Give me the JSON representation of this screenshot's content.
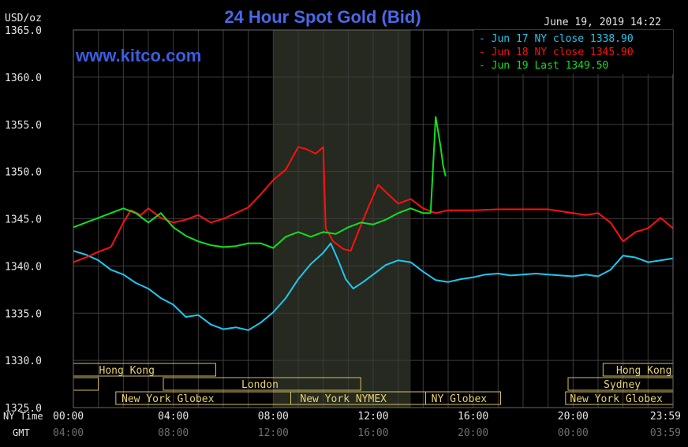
{
  "chart_data": {
    "type": "line",
    "title": "24 Hour Spot Gold (Bid)",
    "brand": "www.kitco.com",
    "unit_label": "USD/oz",
    "timestamp": "June 19, 2019 14:22",
    "ylim": [
      1325,
      1365
    ],
    "xlim": [
      0,
      24
    ],
    "y_ticks": [
      "1365.0",
      "1360.0",
      "1355.0",
      "1350.0",
      "1345.0",
      "1340.0",
      "1335.0",
      "1330.0",
      "1325.0"
    ],
    "x_ticks_ny": [
      "00:00",
      "04:00",
      "08:00",
      "12:00",
      "16:00",
      "20:00",
      "23:59"
    ],
    "x_ticks_gmt": [
      "04:00",
      "08:00",
      "12:00",
      "16:00",
      "20:00",
      "00:00",
      "03:59"
    ],
    "x_row_label_ny": "NY Time",
    "x_row_label_gmt": "GMT",
    "grid": true,
    "legend_position": "top-right",
    "shaded_region": [
      8,
      13.5
    ],
    "market_sessions": [
      {
        "label": "Hong Kong",
        "start": 0,
        "end": 5.7,
        "row": 0,
        "label_at": 0.9
      },
      {
        "label": "Hong Kong",
        "start": 21.2,
        "end": 24,
        "row": 0,
        "label_at": 21.6
      },
      {
        "label": "",
        "start": 0,
        "end": 1,
        "row": 1
      },
      {
        "label": "London",
        "start": 3.6,
        "end": 11.5,
        "row": 1,
        "label_at": 6.6
      },
      {
        "label": "Sydney",
        "start": 19.8,
        "end": 24,
        "row": 1,
        "label_at": 21.1
      },
      {
        "label": "New York Globex",
        "start": 1.7,
        "end": 8.7,
        "row": 2,
        "label_at": 1.8
      },
      {
        "label": "New York NYMEX",
        "start": 8.7,
        "end": 14.1,
        "row": 2,
        "label_at": 8.95
      },
      {
        "label": "NY Globex",
        "start": 14.1,
        "end": 17.1,
        "row": 2,
        "label_at": 14.2
      },
      {
        "label": "New York Globex",
        "start": 19.7,
        "end": 24,
        "row": 2,
        "label_at": 19.75
      }
    ],
    "series": [
      {
        "name": "Jun 17 NY close 1338.90",
        "color": "#1ec8f0",
        "points": [
          [
            0,
            1341.6
          ],
          [
            0.5,
            1341.2
          ],
          [
            1,
            1340.6
          ],
          [
            1.5,
            1339.6
          ],
          [
            2,
            1339.1
          ],
          [
            2.5,
            1338.2
          ],
          [
            3,
            1337.6
          ],
          [
            3.5,
            1336.6
          ],
          [
            4,
            1335.9
          ],
          [
            4.5,
            1334.6
          ],
          [
            5,
            1334.8
          ],
          [
            5.5,
            1333.8
          ],
          [
            6,
            1333.3
          ],
          [
            6.5,
            1333.5
          ],
          [
            7,
            1333.2
          ],
          [
            7.5,
            1334.0
          ],
          [
            8,
            1335.1
          ],
          [
            8.5,
            1336.6
          ],
          [
            9,
            1338.6
          ],
          [
            9.5,
            1340.2
          ],
          [
            10,
            1341.4
          ],
          [
            10.3,
            1342.4
          ],
          [
            10.6,
            1340.6
          ],
          [
            10.9,
            1338.6
          ],
          [
            11.2,
            1337.6
          ],
          [
            11.6,
            1338.3
          ],
          [
            12,
            1339.1
          ],
          [
            12.5,
            1340.1
          ],
          [
            13,
            1340.6
          ],
          [
            13.5,
            1340.4
          ],
          [
            14,
            1339.4
          ],
          [
            14.5,
            1338.5
          ],
          [
            15,
            1338.3
          ],
          [
            15.5,
            1338.6
          ],
          [
            16,
            1338.8
          ],
          [
            16.5,
            1339.1
          ],
          [
            17,
            1339.2
          ],
          [
            17.5,
            1339.0
          ],
          [
            18,
            1339.1
          ],
          [
            18.5,
            1339.2
          ],
          [
            19,
            1339.1
          ],
          [
            19.5,
            1339.0
          ],
          [
            20,
            1338.9
          ],
          [
            20.5,
            1339.1
          ],
          [
            21,
            1338.9
          ],
          [
            21.5,
            1339.6
          ],
          [
            22,
            1341.1
          ],
          [
            22.5,
            1340.9
          ],
          [
            23,
            1340.4
          ],
          [
            23.5,
            1340.6
          ],
          [
            24,
            1340.8
          ]
        ]
      },
      {
        "name": "Jun 18 NY close 1345.90",
        "color": "#ff1010",
        "points": [
          [
            0,
            1340.4
          ],
          [
            0.5,
            1340.9
          ],
          [
            1,
            1341.5
          ],
          [
            1.5,
            1342.0
          ],
          [
            2,
            1344.6
          ],
          [
            2.3,
            1345.9
          ],
          [
            2.7,
            1345.4
          ],
          [
            3,
            1346.1
          ],
          [
            3.5,
            1345.1
          ],
          [
            4,
            1344.6
          ],
          [
            4.5,
            1344.9
          ],
          [
            5,
            1345.4
          ],
          [
            5.5,
            1344.6
          ],
          [
            6,
            1345.0
          ],
          [
            6.5,
            1345.6
          ],
          [
            7,
            1346.2
          ],
          [
            7.5,
            1347.6
          ],
          [
            8,
            1349.1
          ],
          [
            8.5,
            1350.2
          ],
          [
            9,
            1352.6
          ],
          [
            9.3,
            1352.4
          ],
          [
            9.7,
            1351.9
          ],
          [
            10,
            1352.6
          ],
          [
            10.1,
            1344.0
          ],
          [
            10.4,
            1342.6
          ],
          [
            10.8,
            1341.8
          ],
          [
            11.1,
            1341.6
          ],
          [
            11.4,
            1343.6
          ],
          [
            11.8,
            1346.2
          ],
          [
            12.2,
            1348.6
          ],
          [
            12.6,
            1347.6
          ],
          [
            13,
            1346.6
          ],
          [
            13.5,
            1347.1
          ],
          [
            14,
            1346.1
          ],
          [
            14.5,
            1345.6
          ],
          [
            15,
            1345.9
          ],
          [
            16,
            1345.9
          ],
          [
            17,
            1346.0
          ],
          [
            18,
            1346.0
          ],
          [
            19,
            1346.0
          ],
          [
            20,
            1345.6
          ],
          [
            20.5,
            1345.4
          ],
          [
            21,
            1345.6
          ],
          [
            21.5,
            1344.6
          ],
          [
            22,
            1342.6
          ],
          [
            22.5,
            1343.6
          ],
          [
            23,
            1344.0
          ],
          [
            23.5,
            1345.1
          ],
          [
            24,
            1344.0
          ]
        ]
      },
      {
        "name": "Jun 19 Last 1349.50",
        "color": "#10e020",
        "points": [
          [
            0,
            1344.1
          ],
          [
            0.5,
            1344.6
          ],
          [
            1,
            1345.1
          ],
          [
            1.5,
            1345.6
          ],
          [
            2,
            1346.1
          ],
          [
            2.5,
            1345.6
          ],
          [
            3,
            1344.6
          ],
          [
            3.5,
            1345.6
          ],
          [
            4,
            1344.1
          ],
          [
            4.5,
            1343.2
          ],
          [
            5,
            1342.6
          ],
          [
            5.5,
            1342.2
          ],
          [
            6,
            1342.0
          ],
          [
            6.5,
            1342.1
          ],
          [
            7,
            1342.4
          ],
          [
            7.5,
            1342.4
          ],
          [
            8,
            1341.9
          ],
          [
            8.5,
            1343.1
          ],
          [
            9,
            1343.6
          ],
          [
            9.5,
            1343.1
          ],
          [
            10,
            1343.6
          ],
          [
            10.5,
            1343.4
          ],
          [
            11,
            1344.1
          ],
          [
            11.5,
            1344.6
          ],
          [
            12,
            1344.4
          ],
          [
            12.5,
            1344.9
          ],
          [
            13,
            1345.6
          ],
          [
            13.5,
            1346.1
          ],
          [
            14,
            1345.6
          ],
          [
            14.3,
            1345.6
          ],
          [
            14.5,
            1355.8
          ],
          [
            14.7,
            1352.6
          ],
          [
            14.8,
            1350.6
          ],
          [
            14.9,
            1349.5
          ]
        ]
      }
    ]
  }
}
